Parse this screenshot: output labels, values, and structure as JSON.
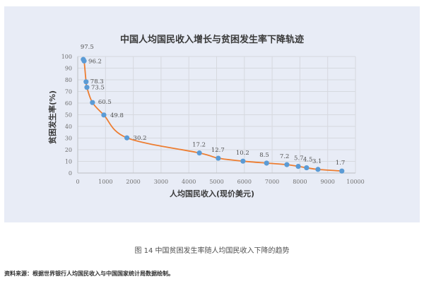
{
  "chart_data": {
    "type": "scatter",
    "title": "中国人均国民收入增长与贫困发生率下降轨迹",
    "xlabel": "人均国民收入(现价美元)",
    "ylabel": "贫困发生率(%)",
    "xlim": [
      0,
      10000
    ],
    "ylim": [
      0,
      100
    ],
    "x_ticks": [
      0,
      1000,
      2000,
      3000,
      4000,
      5000,
      6000,
      7000,
      8000,
      9000,
      10000
    ],
    "y_ticks": [
      0,
      10,
      20,
      30,
      40,
      50,
      60,
      70,
      80,
      90,
      100
    ],
    "grid": true,
    "legend": null,
    "line_color": "#ed7d31",
    "marker_color": "#5b9bd5",
    "smoothed_line": true,
    "series": [
      {
        "name": "贫困发生率",
        "x": [
          200,
          230,
          300,
          330,
          530,
          940,
          1770,
          4380,
          5060,
          5950,
          6800,
          7530,
          7940,
          8240,
          8650,
          9510
        ],
        "y": [
          97.5,
          96.2,
          78.3,
          73.5,
          60.5,
          49.8,
          30.2,
          17.2,
          12.7,
          10.2,
          8.5,
          7.2,
          5.7,
          4.5,
          3.1,
          1.7
        ],
        "labels": [
          "97.5",
          "96.2",
          "78.3",
          "73.5",
          "60.5",
          "49.8",
          "30.2",
          "17.2",
          "12.7",
          "10.2",
          "8.5",
          "7.2",
          "5.7",
          "4.5",
          "3.1",
          "1.7"
        ]
      }
    ]
  },
  "figure": {
    "caption": "图 14   中国贫困发生率随人均国民收入下降的趋势",
    "source": "资料来源：根据世界银行人均国民收入与中国国家统计局数据绘制。"
  }
}
